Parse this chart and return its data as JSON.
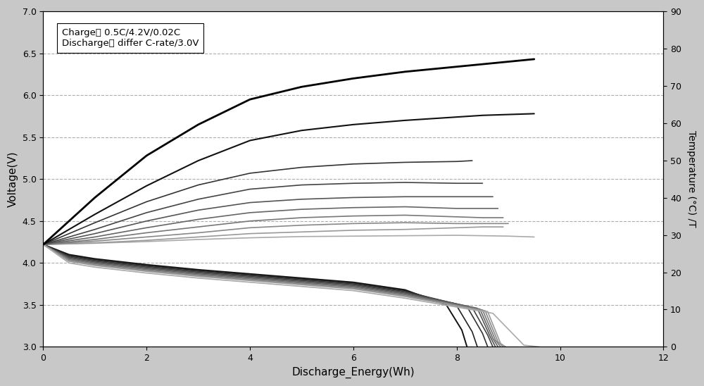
{
  "xlabel": "Discharge_Energy(Wh)",
  "ylabel_left": "Voltage(V)",
  "ylabel_right": "Temperature (°C) /T",
  "annotation": "Charge： 0.5C/4.2V/0.02C\nDischarge： differ C-rate/3.0V",
  "xlim": [
    0,
    12
  ],
  "ylim_left": [
    3.0,
    7.0
  ],
  "ylim_right": [
    0,
    90
  ],
  "xticks": [
    0,
    2,
    4,
    6,
    8,
    10,
    12
  ],
  "yticks_left": [
    3.0,
    3.5,
    4.0,
    4.5,
    5.0,
    5.5,
    6.0,
    6.5,
    7.0
  ],
  "yticks_right": [
    0,
    10,
    20,
    30,
    40,
    50,
    60,
    70,
    80,
    90
  ],
  "background_color": "#c8c8c8",
  "plot_bg_color": "#ffffff",
  "discharge_curves": [
    {
      "x": [
        0,
        0.5,
        1,
        2,
        3,
        4,
        5,
        6,
        7,
        7.8,
        8.1,
        8.2
      ],
      "y": [
        4.22,
        4.1,
        4.05,
        3.98,
        3.92,
        3.87,
        3.82,
        3.77,
        3.68,
        3.5,
        3.2,
        3.0
      ],
      "color": "#111111",
      "lw": 1.4
    },
    {
      "x": [
        0,
        0.5,
        1,
        2,
        3,
        4,
        5,
        6,
        7,
        8.0,
        8.3,
        8.4
      ],
      "y": [
        4.22,
        4.09,
        4.04,
        3.97,
        3.91,
        3.86,
        3.81,
        3.76,
        3.67,
        3.49,
        3.18,
        3.0
      ],
      "color": "#222222",
      "lw": 1.2
    },
    {
      "x": [
        0,
        0.5,
        1,
        2,
        3,
        4,
        5,
        6,
        7,
        8.2,
        8.5,
        8.6
      ],
      "y": [
        4.22,
        4.08,
        4.03,
        3.96,
        3.9,
        3.85,
        3.8,
        3.75,
        3.66,
        3.48,
        3.16,
        3.0
      ],
      "color": "#333333",
      "lw": 1.2
    },
    {
      "x": [
        0,
        0.5,
        1,
        2,
        3,
        4,
        5,
        6,
        7,
        8.3,
        8.6,
        8.7
      ],
      "y": [
        4.22,
        4.07,
        4.02,
        3.95,
        3.89,
        3.84,
        3.79,
        3.74,
        3.65,
        3.47,
        3.14,
        3.0
      ],
      "color": "#444444",
      "lw": 1.2
    },
    {
      "x": [
        0,
        0.5,
        1,
        2,
        3,
        4,
        5,
        6,
        7,
        8.4,
        8.65,
        8.75
      ],
      "y": [
        4.22,
        4.06,
        4.01,
        3.94,
        3.88,
        3.83,
        3.78,
        3.73,
        3.64,
        3.46,
        3.12,
        3.0
      ],
      "color": "#555555",
      "lw": 1.2
    },
    {
      "x": [
        0,
        0.5,
        1,
        2,
        3,
        4,
        5,
        6,
        7,
        8.45,
        8.7,
        8.8
      ],
      "y": [
        4.22,
        4.05,
        4.0,
        3.93,
        3.87,
        3.82,
        3.77,
        3.72,
        3.63,
        3.45,
        3.1,
        3.0
      ],
      "color": "#666666",
      "lw": 1.2
    },
    {
      "x": [
        0,
        0.5,
        1,
        2,
        3,
        4,
        5,
        6,
        7,
        8.5,
        8.75,
        8.85
      ],
      "y": [
        4.22,
        4.04,
        3.99,
        3.92,
        3.86,
        3.81,
        3.76,
        3.71,
        3.62,
        3.44,
        3.08,
        3.0
      ],
      "color": "#777777",
      "lw": 1.2
    },
    {
      "x": [
        0,
        0.5,
        1,
        2,
        3,
        4,
        5,
        6,
        7,
        8.55,
        8.8,
        8.9
      ],
      "y": [
        4.22,
        4.03,
        3.98,
        3.91,
        3.85,
        3.8,
        3.75,
        3.7,
        3.61,
        3.43,
        3.06,
        3.0
      ],
      "color": "#888888",
      "lw": 1.2
    },
    {
      "x": [
        0,
        0.5,
        1,
        2,
        3,
        4,
        5,
        6,
        7,
        8.6,
        8.85,
        8.95
      ],
      "y": [
        4.22,
        4.02,
        3.97,
        3.9,
        3.84,
        3.79,
        3.74,
        3.69,
        3.6,
        3.42,
        3.04,
        3.0
      ],
      "color": "#999999",
      "lw": 1.2
    },
    {
      "x": [
        0,
        0.5,
        1,
        2,
        3,
        4,
        5,
        6,
        7,
        8.7,
        9.3,
        9.6
      ],
      "y": [
        4.22,
        4.0,
        3.95,
        3.88,
        3.82,
        3.77,
        3.72,
        3.67,
        3.58,
        3.4,
        3.02,
        3.0
      ],
      "color": "#aaaaaa",
      "lw": 1.2
    }
  ],
  "temp_curves": [
    {
      "x": [
        0,
        1,
        2,
        3,
        4,
        5,
        6,
        7,
        8,
        8.5,
        9.0,
        9.5
      ],
      "y": [
        4.22,
        4.235,
        4.255,
        4.28,
        4.3,
        4.315,
        4.32,
        4.325,
        4.33,
        4.325,
        4.32,
        4.31
      ],
      "color": "#aaaaaa",
      "lw": 1.2
    },
    {
      "x": [
        0,
        1,
        2,
        3,
        4,
        5,
        6,
        7,
        8,
        8.5,
        8.9
      ],
      "y": [
        4.22,
        4.24,
        4.27,
        4.31,
        4.35,
        4.37,
        4.39,
        4.4,
        4.42,
        4.43,
        4.43
      ],
      "color": "#999999",
      "lw": 1.2
    },
    {
      "x": [
        0,
        1,
        2,
        3,
        4,
        5,
        6,
        7,
        8,
        8.5,
        9.0
      ],
      "y": [
        4.22,
        4.26,
        4.31,
        4.36,
        4.42,
        4.45,
        4.47,
        4.48,
        4.47,
        4.47,
        4.47
      ],
      "color": "#888888",
      "lw": 1.2
    },
    {
      "x": [
        0,
        1,
        2,
        3,
        4,
        5,
        6,
        7,
        8,
        8.5,
        8.9
      ],
      "y": [
        4.22,
        4.28,
        4.36,
        4.43,
        4.5,
        4.54,
        4.56,
        4.57,
        4.55,
        4.54,
        4.54
      ],
      "color": "#777777",
      "lw": 1.2
    },
    {
      "x": [
        0,
        1,
        2,
        3,
        4,
        5,
        6,
        7,
        8,
        8.5,
        8.8
      ],
      "y": [
        4.22,
        4.31,
        4.42,
        4.52,
        4.6,
        4.64,
        4.66,
        4.67,
        4.65,
        4.65,
        4.65
      ],
      "color": "#666666",
      "lw": 1.2
    },
    {
      "x": [
        0,
        1,
        2,
        3,
        4,
        5,
        6,
        7,
        8,
        8.7
      ],
      "y": [
        4.22,
        4.35,
        4.5,
        4.63,
        4.72,
        4.76,
        4.78,
        4.79,
        4.79,
        4.79
      ],
      "color": "#555555",
      "lw": 1.2
    },
    {
      "x": [
        0,
        1,
        2,
        3,
        4,
        5,
        6,
        7,
        8,
        8.5
      ],
      "y": [
        4.22,
        4.4,
        4.6,
        4.76,
        4.88,
        4.93,
        4.95,
        4.96,
        4.95,
        4.95
      ],
      "color": "#444444",
      "lw": 1.2
    },
    {
      "x": [
        0,
        1,
        2,
        3,
        4,
        5,
        6,
        7,
        8,
        8.3
      ],
      "y": [
        4.22,
        4.48,
        4.73,
        4.93,
        5.07,
        5.14,
        5.18,
        5.2,
        5.21,
        5.22
      ],
      "color": "#333333",
      "lw": 1.2
    },
    {
      "x": [
        0,
        1,
        2,
        3,
        4,
        5,
        6,
        7,
        8,
        8.5,
        9.0,
        9.5
      ],
      "y": [
        4.22,
        4.58,
        4.92,
        5.22,
        5.46,
        5.58,
        5.65,
        5.7,
        5.74,
        5.76,
        5.77,
        5.78
      ],
      "color": "#111111",
      "lw": 1.5
    },
    {
      "x": [
        0,
        1,
        2,
        3,
        4,
        5,
        6,
        7,
        8,
        8.5,
        9.0,
        9.5
      ],
      "y": [
        4.22,
        4.78,
        5.28,
        5.65,
        5.95,
        6.1,
        6.2,
        6.28,
        6.34,
        6.37,
        6.4,
        6.43
      ],
      "color": "#000000",
      "lw": 2.0
    }
  ],
  "grid_color": "#777777",
  "grid_style": "--",
  "grid_alpha": 0.6,
  "grid_lw": 0.8
}
